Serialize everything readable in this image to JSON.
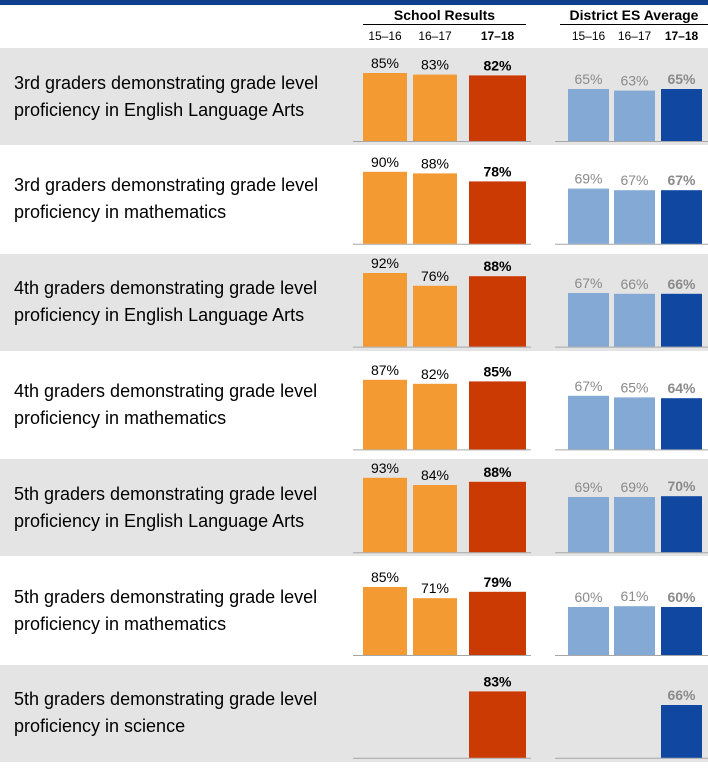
{
  "chart_data": {
    "type": "bar",
    "groups": [
      {
        "name": "School Results",
        "years": [
          "15–16",
          "16–17",
          "17–18"
        ]
      },
      {
        "name": "District ES Average",
        "years": [
          "15–16",
          "16–17",
          "17–18"
        ]
      }
    ],
    "categories": [
      "3rd graders demonstrating grade level proficiency in English Language Arts",
      "3rd graders demonstrating grade level proficiency in mathematics",
      "4th graders demonstrating grade level proficiency in English Language Arts",
      "4th graders demonstrating grade level proficiency in mathematics",
      "5th graders demonstrating grade level proficiency in English Language Arts",
      "5th graders demonstrating grade level proficiency in mathematics",
      "5th graders demonstrating grade level proficiency in science"
    ],
    "category_lines": [
      [
        "3rd graders demonstrating grade level",
        "proficiency in English Language Arts"
      ],
      [
        "3rd graders demonstrating grade level",
        "proficiency in mathematics"
      ],
      [
        "4th graders demonstrating grade level",
        "proficiency in English Language Arts"
      ],
      [
        "4th graders demonstrating grade level",
        "proficiency in mathematics"
      ],
      [
        "5th graders demonstrating grade level",
        "proficiency in English Language Arts"
      ],
      [
        "5th graders demonstrating grade level",
        "proficiency in mathematics"
      ],
      [
        "5th graders demonstrating grade level",
        "proficiency in science"
      ]
    ],
    "series": [
      {
        "group": "School Results",
        "year": "15–16",
        "color": "#f39a32",
        "label_color": "#000000",
        "bold": false,
        "values": [
          85,
          90,
          92,
          87,
          93,
          85,
          null
        ]
      },
      {
        "group": "School Results",
        "year": "16–17",
        "color": "#f39a32",
        "label_color": "#000000",
        "bold": false,
        "values": [
          83,
          88,
          76,
          82,
          84,
          71,
          null
        ]
      },
      {
        "group": "School Results",
        "year": "17–18",
        "color": "#cc3a04",
        "label_color": "#000000",
        "bold": true,
        "values": [
          82,
          78,
          88,
          85,
          88,
          79,
          83
        ]
      },
      {
        "group": "District ES Average",
        "year": "15–16",
        "color": "#84a9d4",
        "label_color": "#8a8a8a",
        "bold": false,
        "values": [
          65,
          69,
          67,
          67,
          69,
          60,
          null
        ]
      },
      {
        "group": "District ES Average",
        "year": "16–17",
        "color": "#84a9d4",
        "label_color": "#8a8a8a",
        "bold": false,
        "values": [
          63,
          67,
          66,
          65,
          69,
          61,
          null
        ]
      },
      {
        "group": "District ES Average",
        "year": "17–18",
        "color": "#0f47a1",
        "label_color": "#8a8a8a",
        "bold": true,
        "values": [
          65,
          67,
          66,
          64,
          70,
          60,
          66
        ]
      }
    ],
    "value_suffix": "%",
    "shaded_rows": [
      0,
      2,
      4,
      6
    ]
  }
}
